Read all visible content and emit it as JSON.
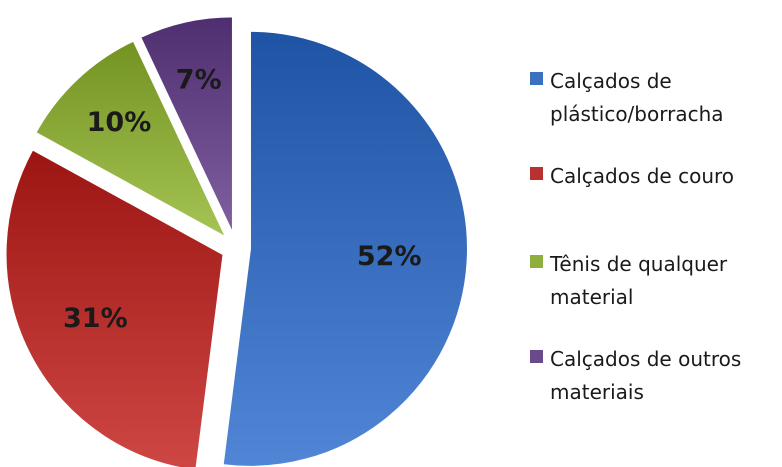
{
  "chart_data": {
    "type": "pie",
    "title": "",
    "legend_position": "right",
    "exploded": true,
    "slices": [
      {
        "label": "Calçados de plástico/borracha",
        "legend_lines": [
          "Calçados de",
          "plástico/borracha"
        ],
        "value": 52,
        "display": "52%",
        "color": "#3b6fc0"
      },
      {
        "label": "Calçados de couro",
        "legend_lines": [
          "Calçados de couro"
        ],
        "value": 31,
        "display": "31%",
        "color": "#b8312e"
      },
      {
        "label": "Tênis de qualquer material",
        "legend_lines": [
          "Tênis de qualquer",
          "material"
        ],
        "value": 10,
        "display": "10%",
        "color": "#8fae3e"
      },
      {
        "label": "Calçados de outros materiais",
        "legend_lines": [
          "Calçados de outros",
          "materiais"
        ],
        "value": 7,
        "display": "7%",
        "color": "#6b4a8c"
      }
    ]
  }
}
